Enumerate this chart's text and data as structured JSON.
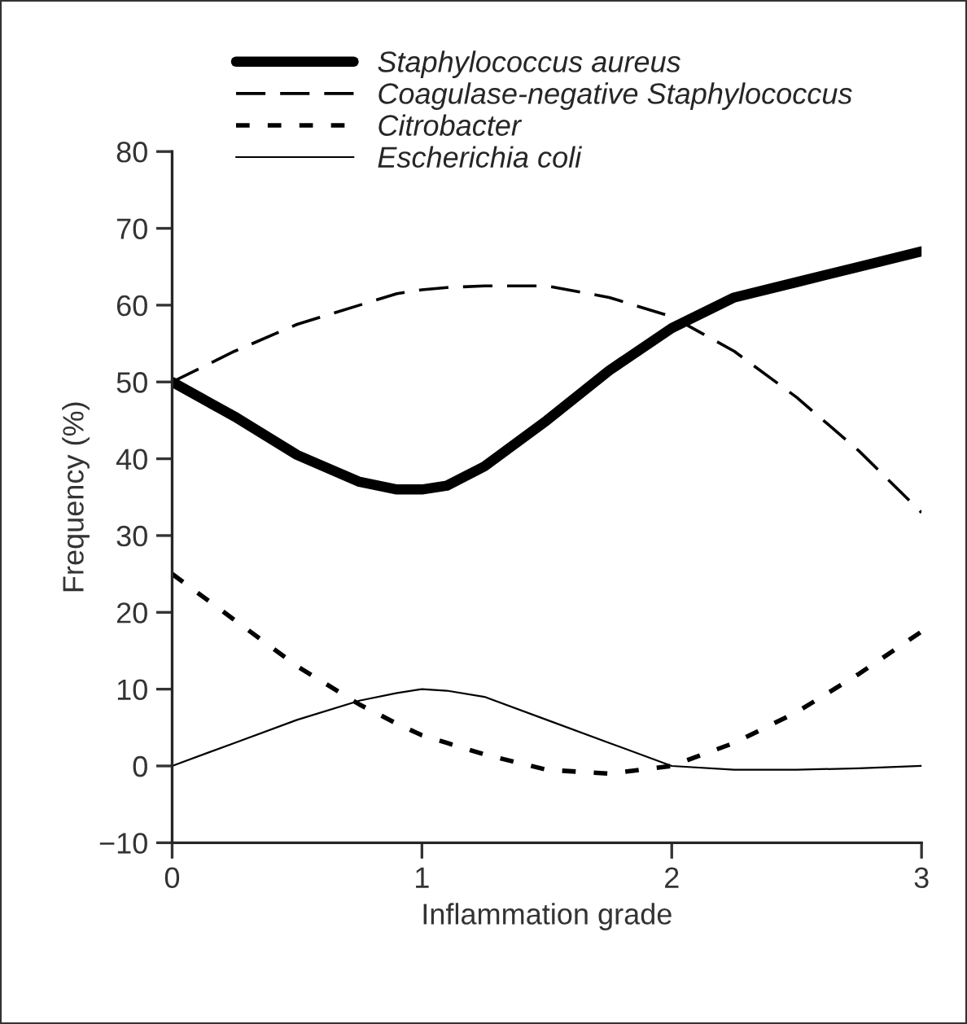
{
  "chart_data": {
    "type": "line",
    "xlabel": "Inflammation grade",
    "ylabel": "Frequency (%)",
    "x": [
      0,
      0.25,
      0.5,
      0.75,
      0.9,
      1,
      1.1,
      1.25,
      1.5,
      1.75,
      2,
      2.25,
      2.5,
      2.75,
      3
    ],
    "series": [
      {
        "name": "Staphylococcus aureus",
        "color": "#000000",
        "line_style": "solid",
        "values": [
          50,
          45.5,
          40.5,
          37,
          36,
          36,
          36.5,
          39,
          45,
          51.5,
          57,
          61,
          63,
          65,
          67
        ]
      },
      {
        "name": "Coagulase-negative Staphylococcus",
        "color": "#000000",
        "line_style": "dashed",
        "values": [
          50,
          54,
          57.5,
          60,
          61.5,
          62,
          62.3,
          62.5,
          62.5,
          61,
          58.5,
          54,
          48,
          41,
          33
        ]
      },
      {
        "name": "Citrobacter",
        "color": "#000000",
        "line_style": "dotted",
        "values": [
          25,
          19,
          13,
          8,
          5.5,
          4,
          3,
          1.5,
          -0.5,
          -1,
          0,
          3,
          7,
          12,
          17.5
        ]
      },
      {
        "name": "Escherichia coli",
        "color": "#000000",
        "line_style": "solid",
        "values": [
          0,
          3,
          6,
          8.5,
          9.5,
          10,
          9.8,
          9,
          6,
          3,
          0,
          -0.5,
          -0.5,
          -0.3,
          0
        ]
      }
    ],
    "xlim": [
      0,
      3
    ],
    "xticks": [
      0,
      1,
      2,
      3
    ],
    "ylim": [
      -10,
      80
    ],
    "yticks": [
      -10,
      0,
      10,
      20,
      30,
      40,
      50,
      60,
      70,
      80
    ],
    "grid": false,
    "legend": "top",
    "marker": "none"
  }
}
